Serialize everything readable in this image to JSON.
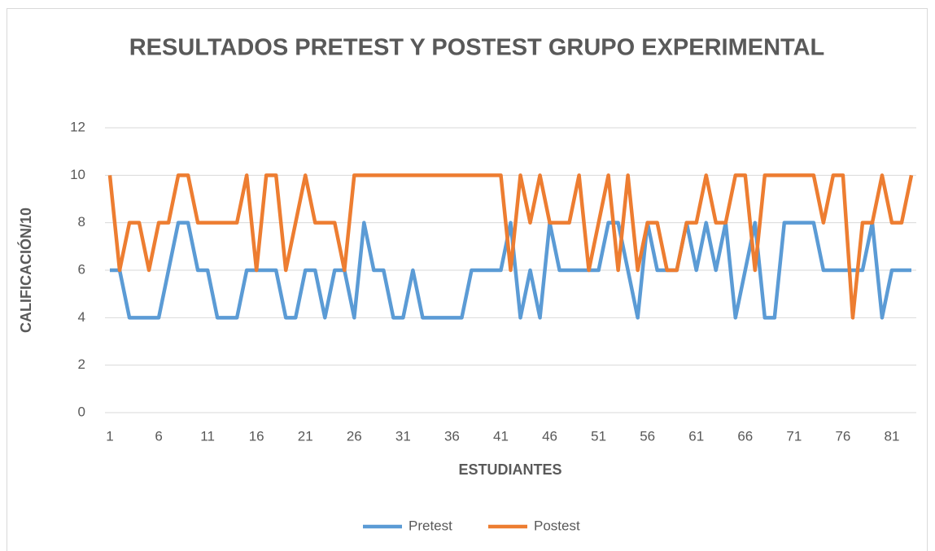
{
  "chart_data": {
    "type": "line",
    "title": "RESULTADOS PRETEST Y POSTEST GRUPO EXPERIMENTAL",
    "x_label": "ESTUDIANTES",
    "y_label": "CALIFICACIÓN/10",
    "categories": [
      1,
      null,
      null,
      null,
      null,
      6,
      null,
      null,
      null,
      null,
      11,
      null,
      null,
      null,
      null,
      16,
      null,
      null,
      null,
      null,
      21,
      null,
      null,
      null,
      null,
      26,
      null,
      null,
      null,
      null,
      31,
      null,
      null,
      null,
      null,
      36,
      null,
      null,
      null,
      null,
      41,
      null,
      null,
      null,
      null,
      46,
      null,
      null,
      null,
      null,
      51,
      null,
      null,
      null,
      null,
      56,
      null,
      null,
      null,
      null,
      61,
      null,
      null,
      null,
      null,
      66,
      null,
      null,
      null,
      null,
      71,
      null,
      null,
      null,
      null,
      76,
      null,
      null,
      null,
      null,
      81,
      null,
      null
    ],
    "series": [
      {
        "name": "Pretest",
        "color": "#5b9bd5",
        "values": [
          6,
          6,
          4,
          4,
          4,
          4,
          6,
          8,
          8,
          6,
          6,
          4,
          4,
          4,
          6,
          6,
          6,
          6,
          4,
          4,
          6,
          6,
          4,
          6,
          6,
          4,
          8,
          6,
          6,
          4,
          4,
          6,
          4,
          4,
          4,
          4,
          4,
          6,
          6,
          6,
          6,
          8,
          4,
          6,
          4,
          8,
          6,
          6,
          6,
          6,
          6,
          8,
          8,
          6,
          4,
          8,
          6,
          6,
          6,
          8,
          6,
          8,
          6,
          8,
          4,
          6,
          8,
          4,
          4,
          8,
          8,
          8,
          8,
          6,
          6,
          6,
          6,
          6,
          8,
          4,
          6,
          6,
          6
        ]
      },
      {
        "name": "Postest",
        "color": "#ed7d31",
        "values": [
          10,
          6,
          8,
          8,
          6,
          8,
          8,
          10,
          10,
          8,
          8,
          8,
          8,
          8,
          10,
          6,
          10,
          10,
          6,
          8,
          10,
          8,
          8,
          8,
          6,
          10,
          10,
          10,
          10,
          10,
          10,
          10,
          10,
          10,
          10,
          10,
          10,
          10,
          10,
          10,
          10,
          6,
          10,
          8,
          10,
          8,
          8,
          8,
          10,
          6,
          8,
          10,
          6,
          10,
          6,
          8,
          8,
          6,
          6,
          8,
          8,
          10,
          8,
          8,
          10,
          10,
          6,
          10,
          10,
          10,
          10,
          10,
          10,
          8,
          10,
          10,
          4,
          8,
          8,
          10,
          8,
          8,
          10
        ]
      }
    ],
    "ylim": [
      0,
      12
    ],
    "yticks": [
      0,
      2,
      4,
      6,
      8,
      10,
      12
    ],
    "grid": true,
    "legend": "bottom"
  }
}
